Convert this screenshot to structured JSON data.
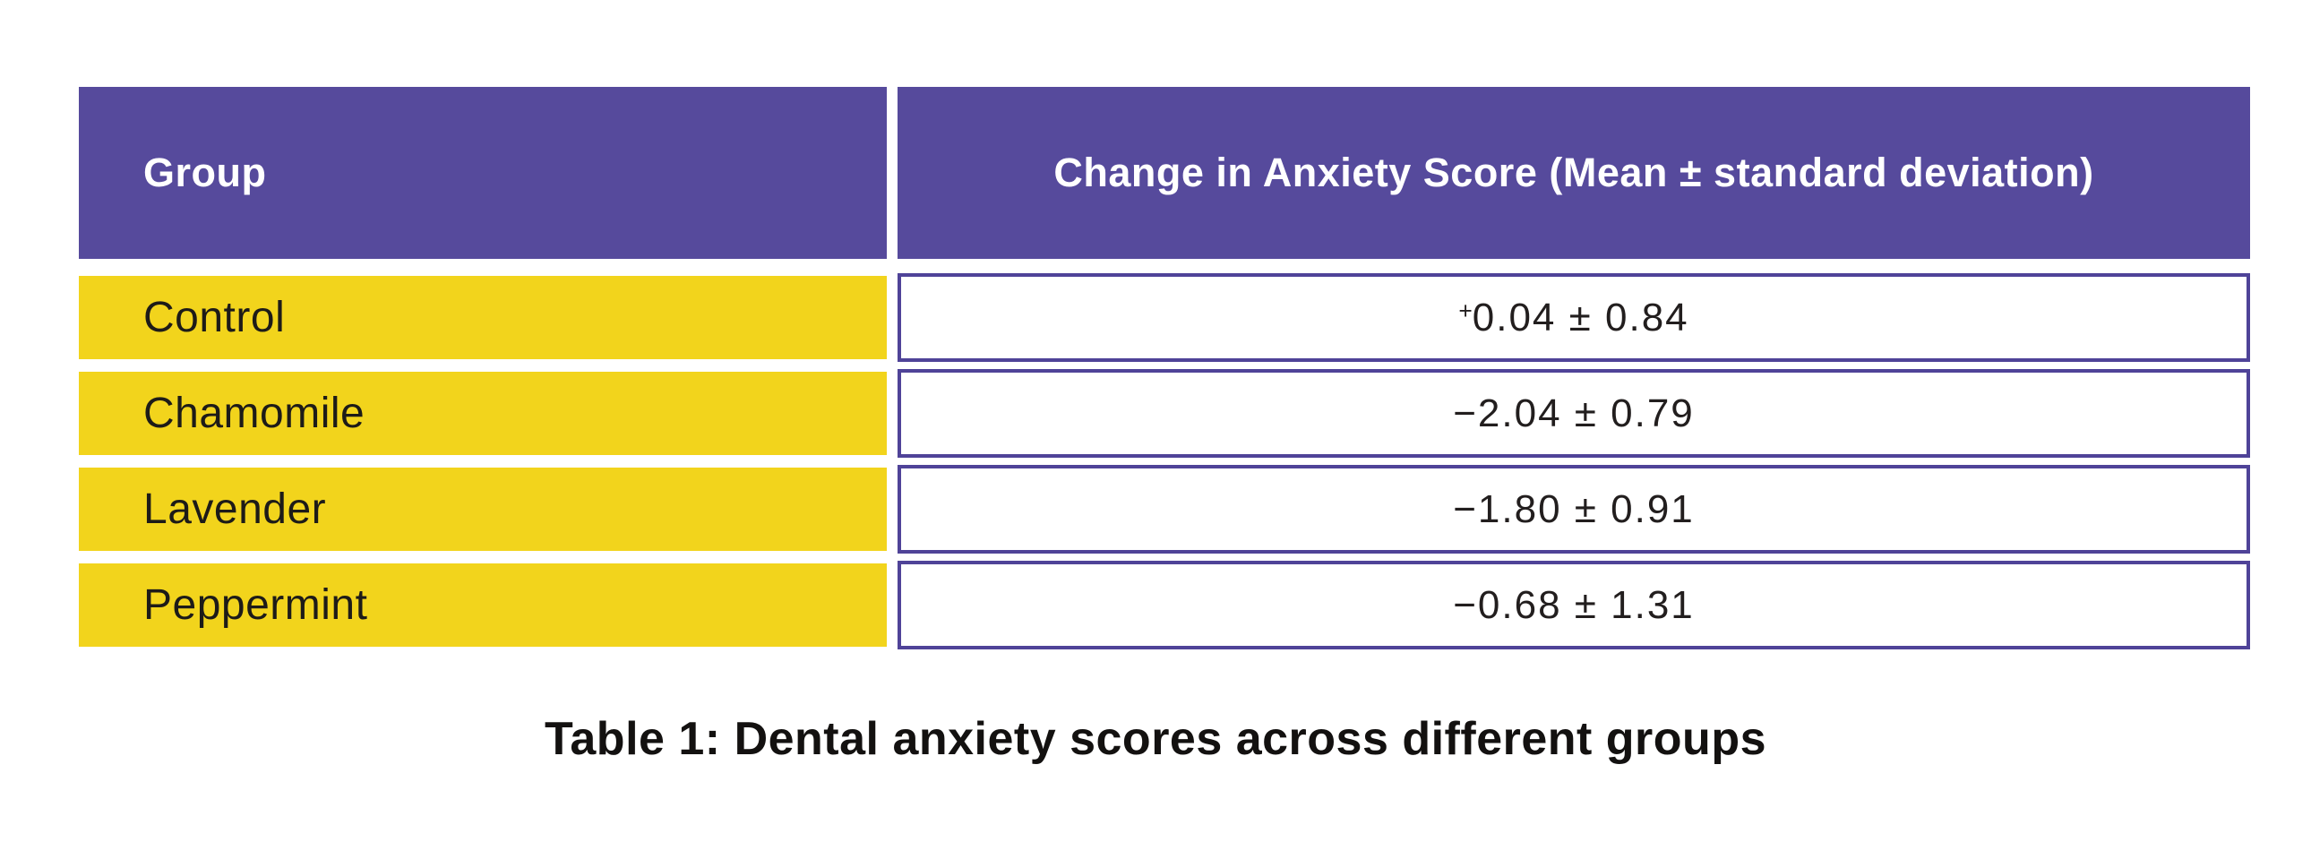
{
  "table": {
    "columns": [
      "Group",
      "Change in Anxiety Score (Mean ± standard deviation)"
    ],
    "rows": [
      {
        "group": "Control",
        "value": "+0.04 ± 0.84"
      },
      {
        "group": "Chamomile",
        "value": "−2.04 ± 0.79"
      },
      {
        "group": "Lavender",
        "value": "−1.80 ± 0.91"
      },
      {
        "group": "Peppermint",
        "value": "−0.68 ± 1.31"
      }
    ]
  },
  "caption": "Table 1: Dental anxiety scores across different groups",
  "colors": {
    "header_purple": "#564a9c",
    "row_yellow": "#f2d41c",
    "box_border_purple": "#4f4398",
    "header_text": "#ffffff",
    "body_text": "#1d1b18"
  },
  "chart_data": {
    "type": "table",
    "title": "Table 1: Dental anxiety scores across different groups",
    "columns": [
      "Group",
      "Change in Anxiety Score (Mean ± standard deviation)"
    ],
    "categories": [
      "Control",
      "Chamomile",
      "Lavender",
      "Peppermint"
    ],
    "series": [
      {
        "name": "Change in Anxiety Score (mean)",
        "values": [
          0.04,
          -2.04,
          -1.8,
          -0.68
        ]
      },
      {
        "name": "Standard deviation",
        "values": [
          0.84,
          0.79,
          0.91,
          1.31
        ]
      }
    ],
    "cells": [
      [
        "Control",
        "+0.04 ± 0.84"
      ],
      [
        "Chamomile",
        "−2.04 ± 0.79"
      ],
      [
        "Lavender",
        "−1.80 ± 0.91"
      ],
      [
        "Peppermint",
        "−0.68 ± 1.31"
      ]
    ]
  }
}
